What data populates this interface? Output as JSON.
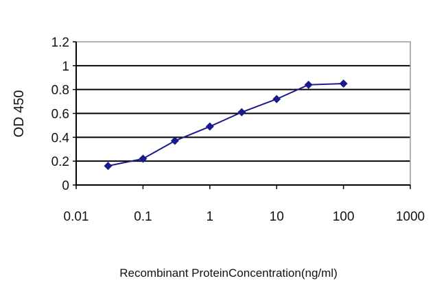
{
  "chart_data": {
    "type": "line",
    "title": "",
    "xlabel": "Recombinant ProteinConcentration(ng/ml)",
    "ylabel": "OD 450",
    "xscale": "log",
    "xlim": [
      0.01,
      1000
    ],
    "ylim": [
      0,
      1.2
    ],
    "xticks": [
      "0.01",
      "0.1",
      "1",
      "10",
      "100",
      "1000"
    ],
    "yticks": [
      "0",
      "0.2",
      "0.4",
      "0.6",
      "0.8",
      "1",
      "1.2"
    ],
    "grid": "horizontal",
    "marker": "diamond",
    "colors": {
      "series": "#1a1a8c",
      "grid": "#000000",
      "frame": "#999999"
    },
    "series": [
      {
        "x": [
          0.03,
          0.1,
          0.3,
          1,
          3,
          10,
          30,
          100
        ],
        "y": [
          0.16,
          0.22,
          0.37,
          0.49,
          0.61,
          0.72,
          0.84,
          0.85
        ]
      }
    ]
  }
}
